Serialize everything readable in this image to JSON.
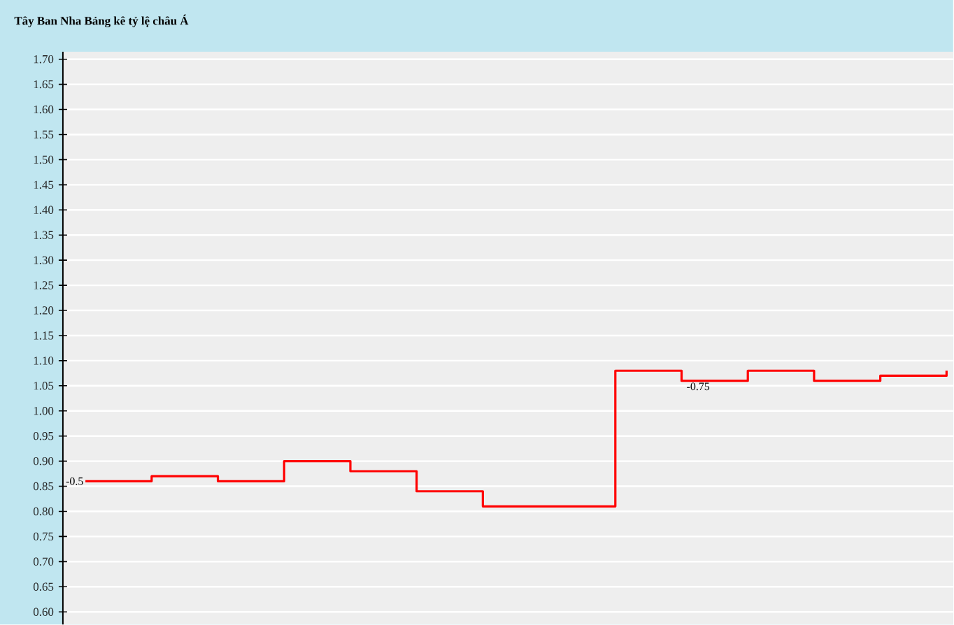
{
  "chart_data": {
    "type": "step",
    "title": "Tây Ban Nha Bảng kê tỷ lệ châu Á",
    "categories": [
      null,
      null,
      null,
      null,
      null,
      null,
      null,
      null,
      null,
      null,
      null,
      null,
      null,
      null
    ],
    "series": [
      {
        "color": "#ff0000",
        "values": [
          0.86,
          0.87,
          0.86,
          0.9,
          0.88,
          0.84,
          0.81,
          0.81,
          1.08,
          1.06,
          1.08,
          1.06,
          1.07,
          1.08
        ]
      }
    ],
    "annotations": [
      "-0.5",
      "-0.75"
    ],
    "ylim": [
      0.575,
      1.715
    ],
    "yticks": [
      {
        "value": 0.6,
        "label": "0.60"
      },
      {
        "value": 0.65,
        "label": "0.65"
      },
      {
        "value": 0.7,
        "label": "0.70"
      },
      {
        "value": 0.75,
        "label": "0.75"
      },
      {
        "value": 0.8,
        "label": "0.80"
      },
      {
        "value": 0.85,
        "label": "0.85"
      },
      {
        "value": 0.9,
        "label": "0.90"
      },
      {
        "value": 0.95,
        "label": "0.95"
      },
      {
        "value": 1.0,
        "label": "1.00"
      },
      {
        "value": 1.05,
        "label": "1.05"
      },
      {
        "value": 1.1,
        "label": "1.10"
      },
      {
        "value": 1.15,
        "label": "1.15"
      },
      {
        "value": 1.2,
        "label": "1.20"
      },
      {
        "value": 1.25,
        "label": "1.25"
      },
      {
        "value": 1.3,
        "label": "1.30"
      },
      {
        "value": 1.35,
        "label": "1.35"
      },
      {
        "value": 1.4,
        "label": "1.40"
      },
      {
        "value": 1.45,
        "label": "1.45"
      },
      {
        "value": 1.5,
        "label": "1.50"
      },
      {
        "value": 1.55,
        "label": "1.55"
      },
      {
        "value": 1.6,
        "label": "1.60"
      },
      {
        "value": 1.65,
        "label": "1.65"
      },
      {
        "value": 1.7,
        "label": "1.70"
      }
    ],
    "grid": "y",
    "tick_labels": "y",
    "marker": "none",
    "line_style": "solid"
  }
}
